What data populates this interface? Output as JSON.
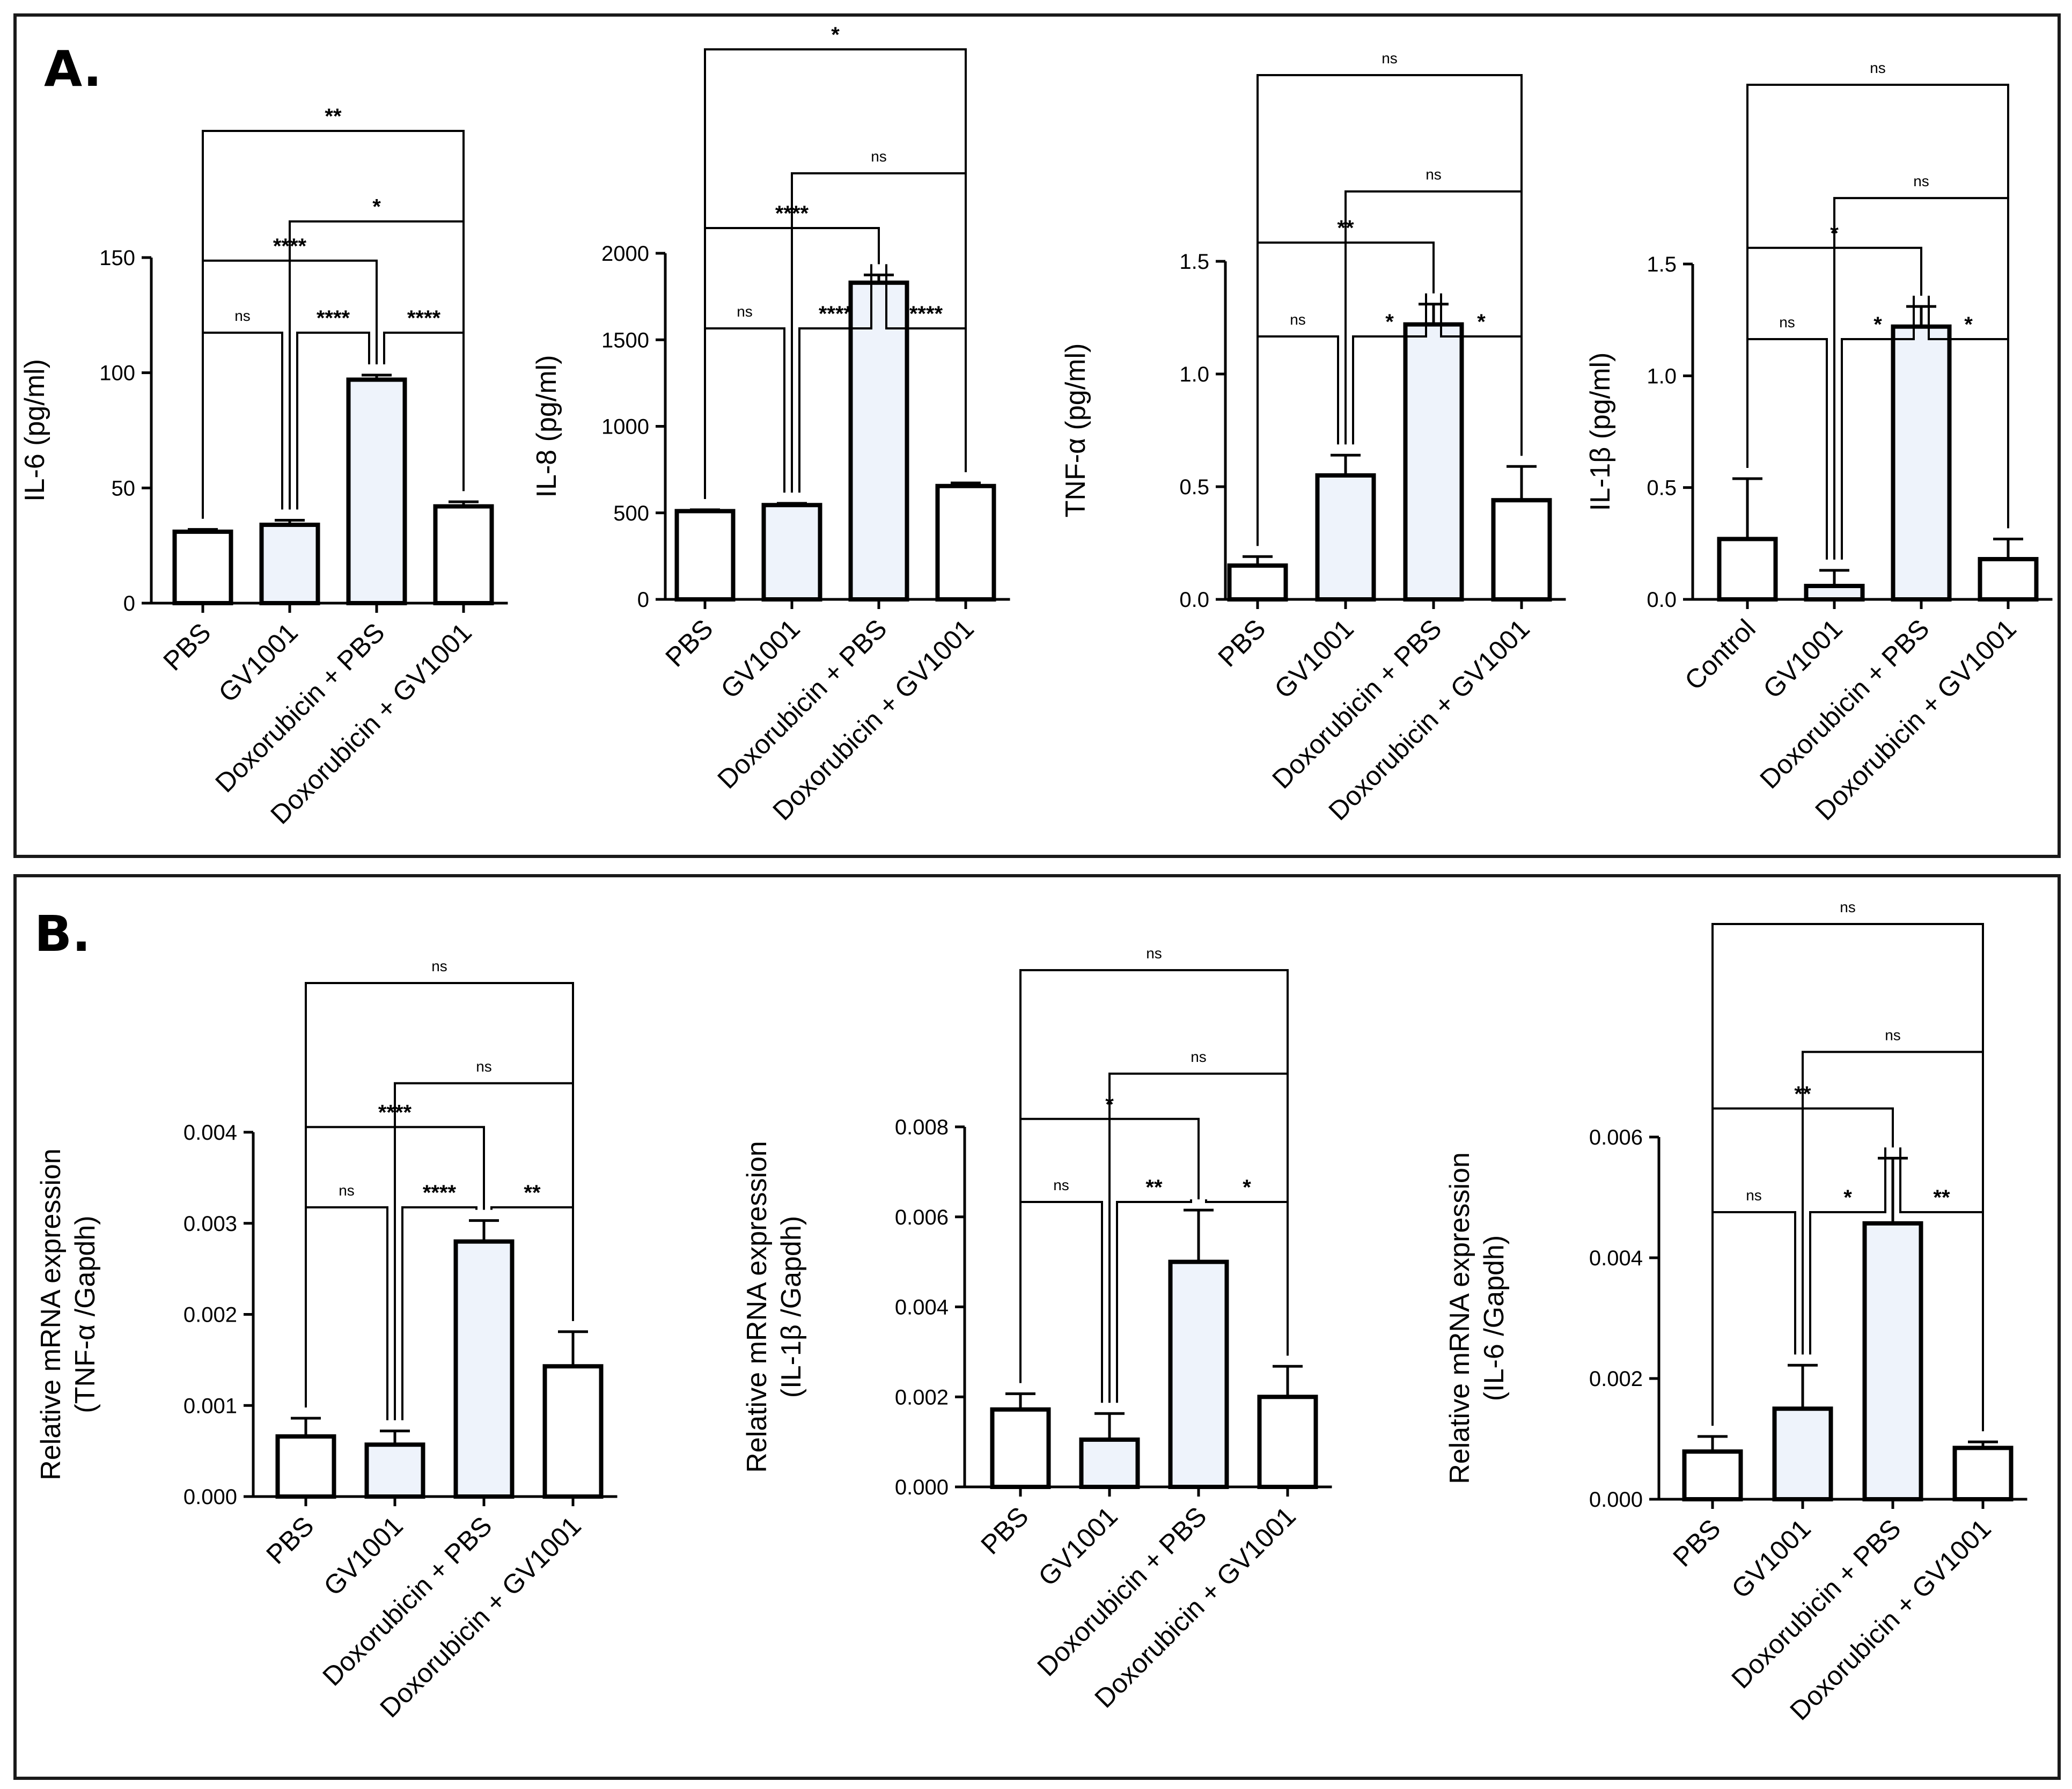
{
  "panels": [
    {
      "label": "A."
    },
    {
      "label": "B."
    }
  ],
  "colors": {
    "bar_white": "#ffffff",
    "bar_tint": "#eef3fb",
    "stroke": "#000000",
    "border": "#1a1a1a"
  },
  "chart_data": [
    {
      "type": "bar",
      "panel": "A.",
      "ylabel": "IL-6 (pg/ml)",
      "categories": [
        "PBS",
        "GV1001",
        "Doxorubicin  + PBS",
        "Doxorubicin + GV1001"
      ],
      "values": [
        31,
        34,
        97,
        42
      ],
      "errors": [
        1,
        2,
        2,
        2
      ],
      "ylim": [
        0,
        150
      ],
      "yticks": [
        0,
        50,
        100,
        150
      ],
      "yticklabels": [
        "0",
        "50",
        "100",
        "150"
      ],
      "comparisons": [
        {
          "from": 0,
          "to": 1,
          "label": "ns"
        },
        {
          "from": 1,
          "to": 2,
          "label": "****"
        },
        {
          "from": 2,
          "to": 3,
          "label": "****"
        },
        {
          "from": 0,
          "to": 2,
          "label": "****"
        },
        {
          "from": 1,
          "to": 3,
          "label": "*"
        },
        {
          "from": 0,
          "to": 3,
          "label": "**"
        }
      ]
    },
    {
      "type": "bar",
      "panel": "A.",
      "ylabel": "IL-8 (pg/ml)",
      "categories": [
        "PBS",
        "GV1001",
        "Doxorubicin + PBS",
        "Doxorubicin + GV1001"
      ],
      "values": [
        510,
        545,
        1830,
        655
      ],
      "errors": [
        8,
        10,
        45,
        18
      ],
      "ylim": [
        0,
        2000
      ],
      "yticks": [
        0,
        500,
        1000,
        1500,
        2000
      ],
      "yticklabels": [
        "0",
        "500",
        "1000",
        "1500",
        "2000"
      ],
      "comparisons": [
        {
          "from": 0,
          "to": 1,
          "label": "ns"
        },
        {
          "from": 1,
          "to": 2,
          "label": "****"
        },
        {
          "from": 2,
          "to": 3,
          "label": "****"
        },
        {
          "from": 0,
          "to": 2,
          "label": "****"
        },
        {
          "from": 1,
          "to": 3,
          "label": "ns"
        },
        {
          "from": 0,
          "to": 3,
          "label": "*"
        }
      ]
    },
    {
      "type": "bar",
      "panel": "A.",
      "ylabel": "TNF-α (pg/ml)",
      "categories": [
        "PBS",
        "GV1001",
        "Doxorubicin + PBS",
        "Doxorubicin + GV1001"
      ],
      "values": [
        0.15,
        0.55,
        1.22,
        0.44
      ],
      "errors": [
        0.04,
        0.09,
        0.09,
        0.15
      ],
      "ylim": [
        0,
        1.5
      ],
      "yticks": [
        0,
        0.5,
        1.0,
        1.5
      ],
      "yticklabels": [
        "0.0",
        "0.5",
        "1.0",
        "1.5"
      ],
      "comparisons": [
        {
          "from": 0,
          "to": 1,
          "label": "ns"
        },
        {
          "from": 1,
          "to": 2,
          "label": "*"
        },
        {
          "from": 2,
          "to": 3,
          "label": "*"
        },
        {
          "from": 0,
          "to": 2,
          "label": "**"
        },
        {
          "from": 1,
          "to": 3,
          "label": "ns"
        },
        {
          "from": 0,
          "to": 3,
          "label": "ns"
        }
      ]
    },
    {
      "type": "bar",
      "panel": "A.",
      "ylabel": "IL-1β (pg/ml)",
      "categories": [
        "Control",
        "GV1001",
        "Doxorubicin + PBS",
        "Doxorubicin + GV1001"
      ],
      "values": [
        0.27,
        0.06,
        1.22,
        0.18
      ],
      "errors": [
        0.27,
        0.07,
        0.09,
        0.09
      ],
      "ylim": [
        0,
        1.5
      ],
      "yticks": [
        0,
        0.5,
        1.0,
        1.5
      ],
      "yticklabels": [
        "0.0",
        "0.5",
        "1.0",
        "1.5"
      ],
      "comparisons": [
        {
          "from": 0,
          "to": 1,
          "label": "ns"
        },
        {
          "from": 1,
          "to": 2,
          "label": "*"
        },
        {
          "from": 2,
          "to": 3,
          "label": "*"
        },
        {
          "from": 0,
          "to": 2,
          "label": "*"
        },
        {
          "from": 1,
          "to": 3,
          "label": "ns"
        },
        {
          "from": 0,
          "to": 3,
          "label": "ns"
        }
      ]
    },
    {
      "type": "bar",
      "panel": "B.",
      "ylabel": [
        "Relative mRNA expression",
        "(TNF-α /Gapdh)"
      ],
      "categories": [
        "PBS",
        "GV1001",
        "Doxorubicin  + PBS",
        "Doxorubicin + GV1001"
      ],
      "values": [
        0.00066,
        0.00057,
        0.0028,
        0.00143
      ],
      "errors": [
        0.0002,
        0.00015,
        0.00023,
        0.00038
      ],
      "ylim": [
        0,
        0.004
      ],
      "yticks": [
        0,
        0.001,
        0.002,
        0.003,
        0.004
      ],
      "yticklabels": [
        "0.000",
        "0.001",
        "0.002",
        "0.003",
        "0.004"
      ],
      "comparisons": [
        {
          "from": 0,
          "to": 1,
          "label": "ns"
        },
        {
          "from": 1,
          "to": 2,
          "label": "****"
        },
        {
          "from": 2,
          "to": 3,
          "label": "**"
        },
        {
          "from": 0,
          "to": 2,
          "label": "****"
        },
        {
          "from": 1,
          "to": 3,
          "label": "ns"
        },
        {
          "from": 0,
          "to": 3,
          "label": "ns"
        }
      ]
    },
    {
      "type": "bar",
      "panel": "B.",
      "ylabel": [
        "Relative mRNA expression",
        "(IL-1β /Gapdh)"
      ],
      "categories": [
        "PBS",
        "GV1001",
        "Doxorubicin  + PBS",
        "Doxorubicin + GV1001"
      ],
      "values": [
        0.00172,
        0.00105,
        0.005,
        0.002
      ],
      "errors": [
        0.00035,
        0.00058,
        0.00115,
        0.00068
      ],
      "ylim": [
        0,
        0.008
      ],
      "yticks": [
        0,
        0.002,
        0.004,
        0.006,
        0.008
      ],
      "yticklabels": [
        "0.000",
        "0.002",
        "0.004",
        "0.006",
        "0.008"
      ],
      "comparisons": [
        {
          "from": 0,
          "to": 1,
          "label": "ns"
        },
        {
          "from": 1,
          "to": 2,
          "label": "**"
        },
        {
          "from": 2,
          "to": 3,
          "label": "*"
        },
        {
          "from": 0,
          "to": 2,
          "label": "*"
        },
        {
          "from": 1,
          "to": 3,
          "label": "ns"
        },
        {
          "from": 0,
          "to": 3,
          "label": "ns"
        }
      ]
    },
    {
      "type": "bar",
      "panel": "B.",
      "ylabel": [
        "Relative mRNA expression",
        "(IL-6 /Gapdh)"
      ],
      "categories": [
        "PBS",
        "GV1001",
        "Doxorubicin  + PBS",
        "Doxorubicin + GV1001"
      ],
      "values": [
        0.00079,
        0.0015,
        0.00457,
        0.00085
      ],
      "errors": [
        0.00025,
        0.00072,
        0.00108,
        0.0001
      ],
      "ylim": [
        0,
        0.006
      ],
      "yticks": [
        0,
        0.002,
        0.004,
        0.006
      ],
      "yticklabels": [
        "0.000",
        "0.002",
        "0.004",
        "0.006"
      ],
      "comparisons": [
        {
          "from": 0,
          "to": 1,
          "label": "ns"
        },
        {
          "from": 1,
          "to": 2,
          "label": "*"
        },
        {
          "from": 2,
          "to": 3,
          "label": "**"
        },
        {
          "from": 0,
          "to": 2,
          "label": "**"
        },
        {
          "from": 1,
          "to": 3,
          "label": "ns"
        },
        {
          "from": 0,
          "to": 3,
          "label": "ns"
        }
      ]
    }
  ]
}
